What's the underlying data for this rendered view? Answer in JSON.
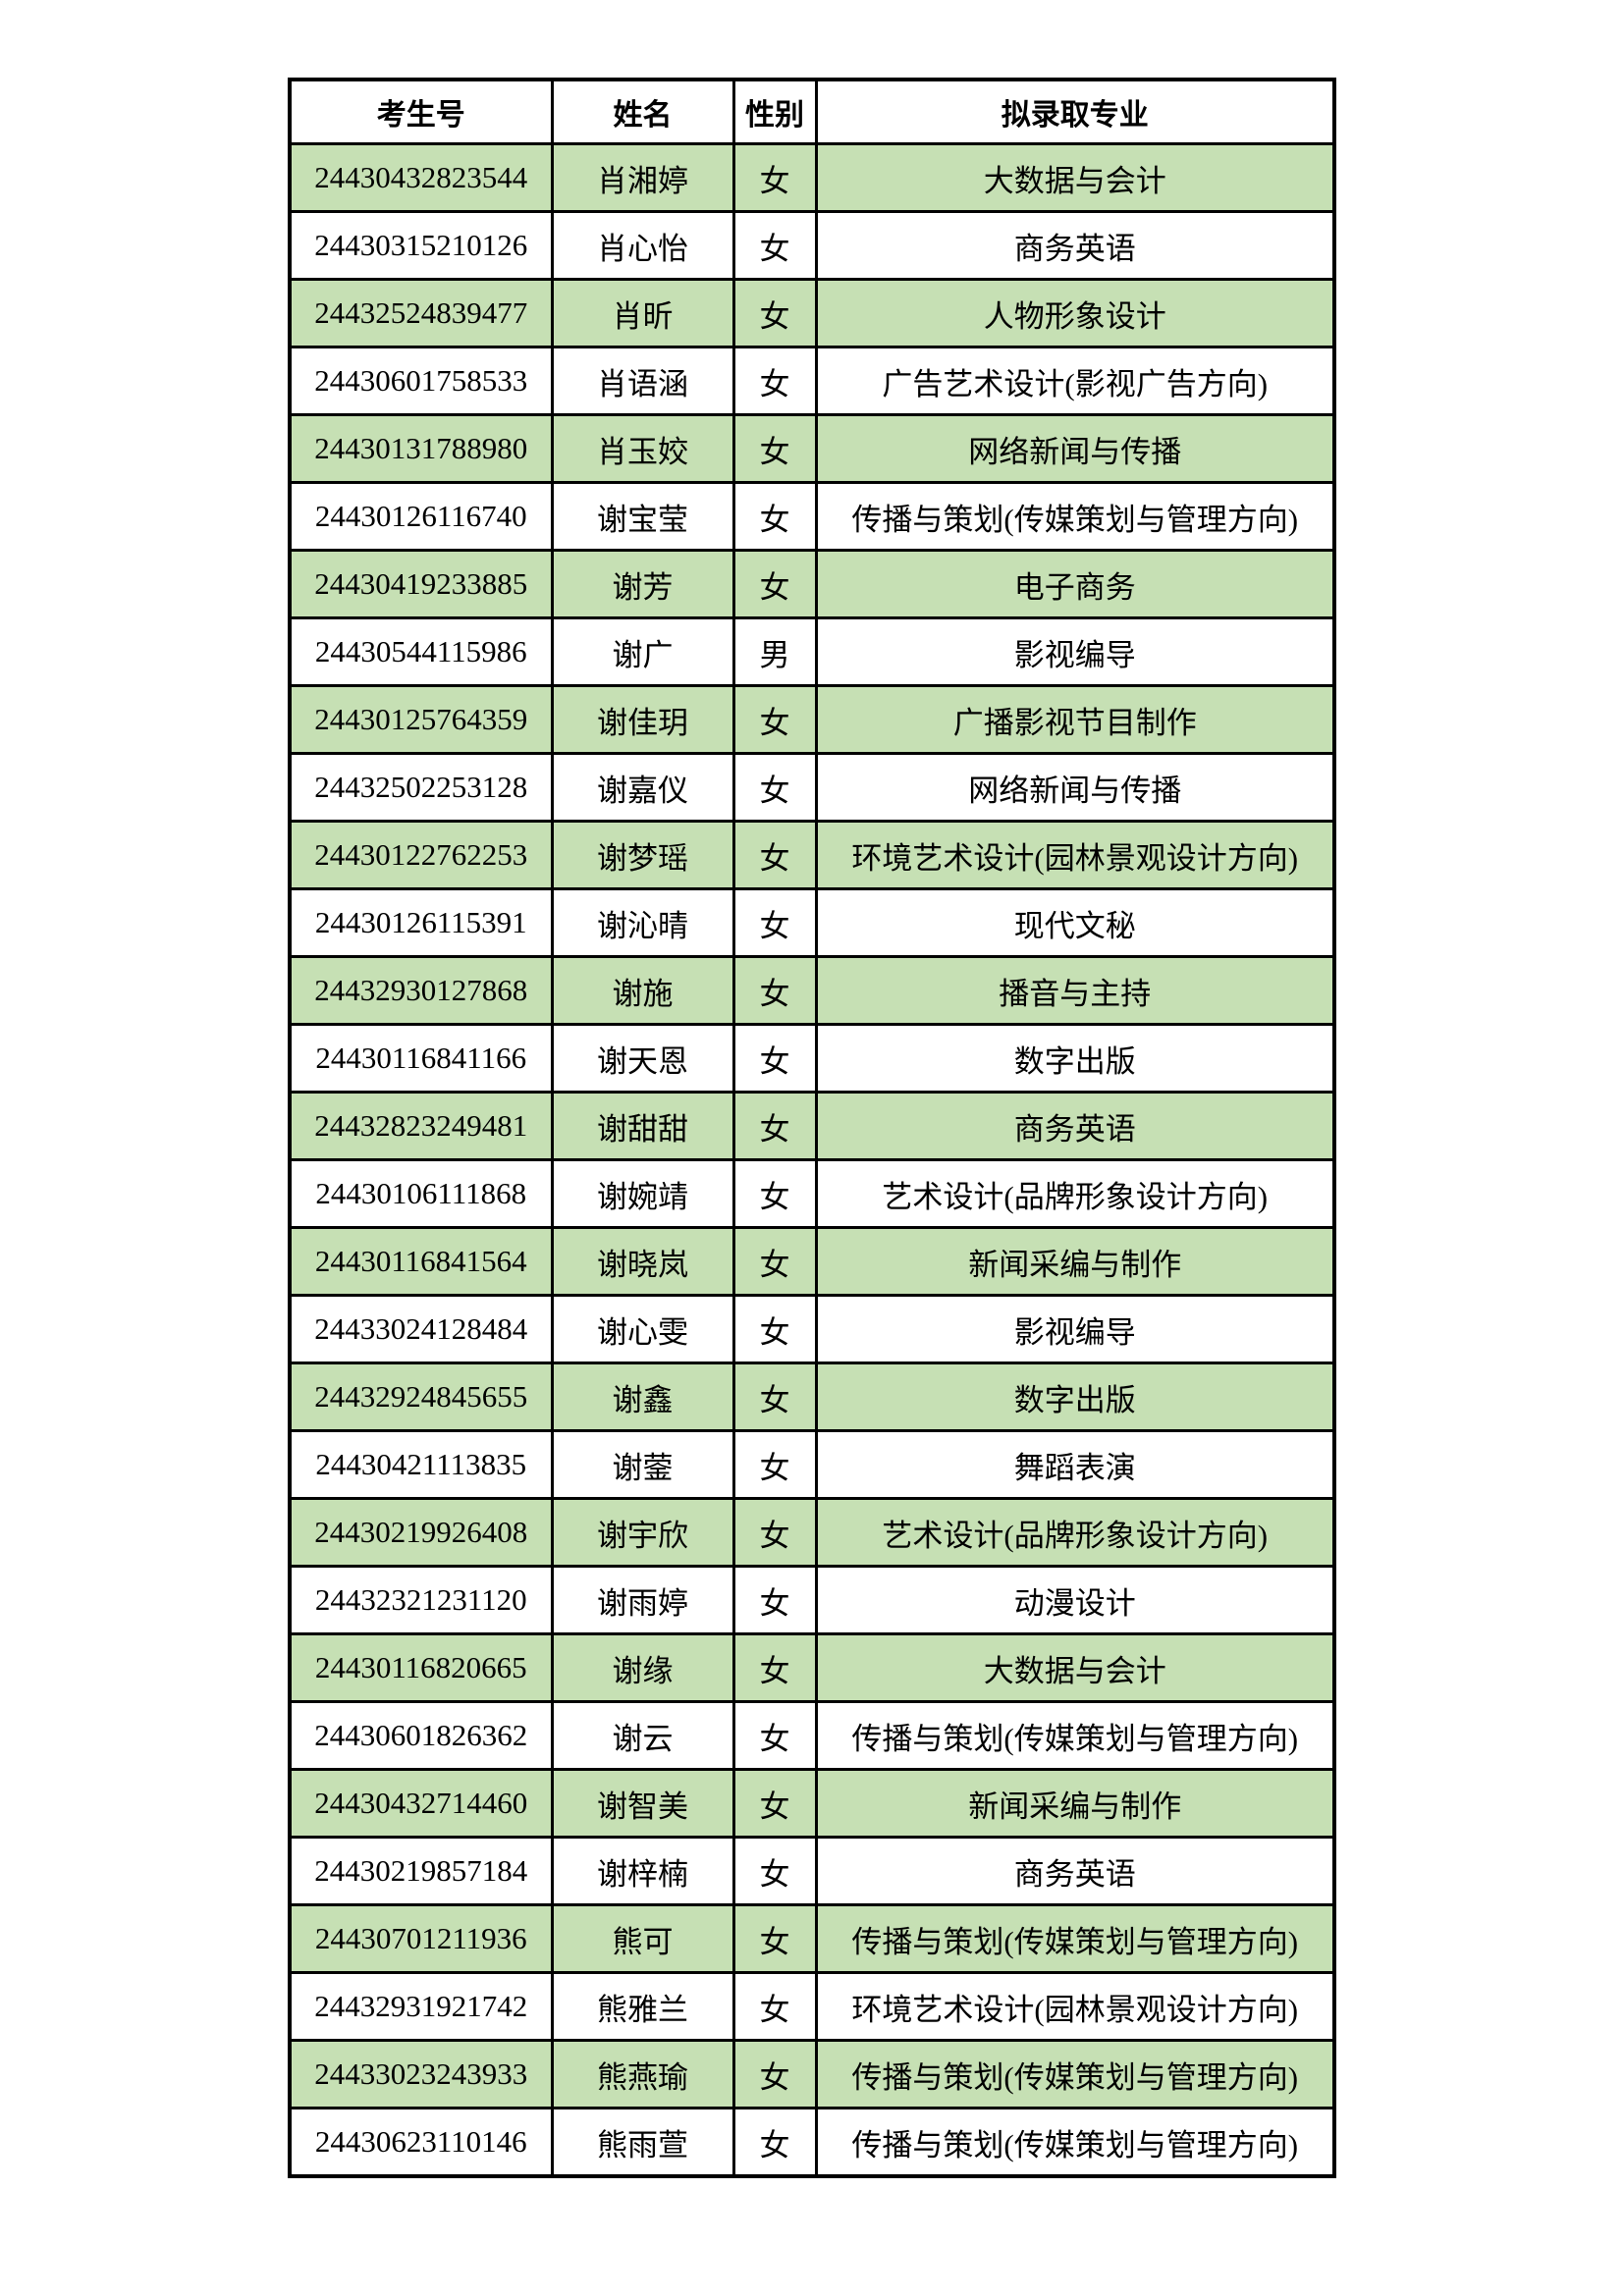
{
  "table": {
    "columns": [
      {
        "key": "candidate_no",
        "label": "考生号"
      },
      {
        "key": "name",
        "label": "姓名"
      },
      {
        "key": "gender",
        "label": "性别"
      },
      {
        "key": "major",
        "label": "拟录取专业"
      }
    ],
    "colors": {
      "highlight_row": "#c6e0b4",
      "border": "#000000",
      "text": "#000000",
      "page_background": "#ffffff"
    },
    "rows": [
      {
        "candidate_no": "24430432823544",
        "name": "肖湘婷",
        "gender": "女",
        "major": "大数据与会计",
        "highlighted": true
      },
      {
        "candidate_no": "24430315210126",
        "name": "肖心怡",
        "gender": "女",
        "major": "商务英语",
        "highlighted": false
      },
      {
        "candidate_no": "24432524839477",
        "name": "肖昕",
        "gender": "女",
        "major": "人物形象设计",
        "highlighted": true
      },
      {
        "candidate_no": "24430601758533",
        "name": "肖语涵",
        "gender": "女",
        "major": "广告艺术设计(影视广告方向)",
        "highlighted": false
      },
      {
        "candidate_no": "24430131788980",
        "name": "肖玉姣",
        "gender": "女",
        "major": "网络新闻与传播",
        "highlighted": true
      },
      {
        "candidate_no": "24430126116740",
        "name": "谢宝莹",
        "gender": "女",
        "major": "传播与策划(传媒策划与管理方向)",
        "highlighted": false
      },
      {
        "candidate_no": "24430419233885",
        "name": "谢芳",
        "gender": "女",
        "major": "电子商务",
        "highlighted": true
      },
      {
        "candidate_no": "24430544115986",
        "name": "谢广",
        "gender": "男",
        "major": "影视编导",
        "highlighted": false
      },
      {
        "candidate_no": "24430125764359",
        "name": "谢佳玥",
        "gender": "女",
        "major": "广播影视节目制作",
        "highlighted": true
      },
      {
        "candidate_no": "24432502253128",
        "name": "谢嘉仪",
        "gender": "女",
        "major": "网络新闻与传播",
        "highlighted": false
      },
      {
        "candidate_no": "24430122762253",
        "name": "谢梦瑶",
        "gender": "女",
        "major": "环境艺术设计(园林景观设计方向)",
        "highlighted": true
      },
      {
        "candidate_no": "24430126115391",
        "name": "谢沁晴",
        "gender": "女",
        "major": "现代文秘",
        "highlighted": false
      },
      {
        "candidate_no": "24432930127868",
        "name": "谢施",
        "gender": "女",
        "major": "播音与主持",
        "highlighted": true
      },
      {
        "candidate_no": "24430116841166",
        "name": "谢天恩",
        "gender": "女",
        "major": "数字出版",
        "highlighted": false
      },
      {
        "candidate_no": "24432823249481",
        "name": "谢甜甜",
        "gender": "女",
        "major": "商务英语",
        "highlighted": true
      },
      {
        "candidate_no": "24430106111868",
        "name": "谢婉靖",
        "gender": "女",
        "major": "艺术设计(品牌形象设计方向)",
        "highlighted": false
      },
      {
        "candidate_no": "24430116841564",
        "name": "谢晓岚",
        "gender": "女",
        "major": "新闻采编与制作",
        "highlighted": true
      },
      {
        "candidate_no": "24433024128484",
        "name": "谢心雯",
        "gender": "女",
        "major": "影视编导",
        "highlighted": false
      },
      {
        "candidate_no": "24432924845655",
        "name": "谢鑫",
        "gender": "女",
        "major": "数字出版",
        "highlighted": true
      },
      {
        "candidate_no": "24430421113835",
        "name": "谢蓥",
        "gender": "女",
        "major": "舞蹈表演",
        "highlighted": false
      },
      {
        "candidate_no": "24430219926408",
        "name": "谢宇欣",
        "gender": "女",
        "major": "艺术设计(品牌形象设计方向)",
        "highlighted": true
      },
      {
        "candidate_no": "24432321231120",
        "name": "谢雨婷",
        "gender": "女",
        "major": "动漫设计",
        "highlighted": false
      },
      {
        "candidate_no": "24430116820665",
        "name": "谢缘",
        "gender": "女",
        "major": "大数据与会计",
        "highlighted": true
      },
      {
        "candidate_no": "24430601826362",
        "name": "谢云",
        "gender": "女",
        "major": "传播与策划(传媒策划与管理方向)",
        "highlighted": false
      },
      {
        "candidate_no": "24430432714460",
        "name": "谢智美",
        "gender": "女",
        "major": "新闻采编与制作",
        "highlighted": true
      },
      {
        "candidate_no": "24430219857184",
        "name": "谢梓楠",
        "gender": "女",
        "major": "商务英语",
        "highlighted": false
      },
      {
        "candidate_no": "24430701211936",
        "name": "熊可",
        "gender": "女",
        "major": "传播与策划(传媒策划与管理方向)",
        "highlighted": true
      },
      {
        "candidate_no": "24432931921742",
        "name": "熊雅兰",
        "gender": "女",
        "major": "环境艺术设计(园林景观设计方向)",
        "highlighted": false
      },
      {
        "candidate_no": "24433023243933",
        "name": "熊燕瑜",
        "gender": "女",
        "major": "传播与策划(传媒策划与管理方向)",
        "highlighted": true
      },
      {
        "candidate_no": "24430623110146",
        "name": "熊雨萱",
        "gender": "女",
        "major": "传播与策划(传媒策划与管理方向)",
        "highlighted": false
      }
    ]
  }
}
